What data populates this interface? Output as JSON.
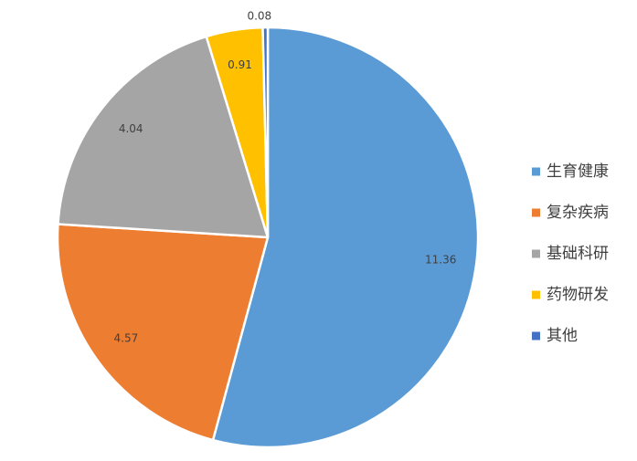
{
  "chart_data": {
    "type": "pie",
    "title": "",
    "legend_position": "right",
    "start_angle_deg": 0,
    "direction": "clockwise",
    "slices": [
      {
        "label": "生育健康",
        "value": 11.36,
        "color": "#5B9BD5"
      },
      {
        "label": "复杂疾病",
        "value": 4.57,
        "color": "#ED7D31"
      },
      {
        "label": "基础科研",
        "value": 4.04,
        "color": "#A5A5A5"
      },
      {
        "label": "药物研发",
        "value": 0.91,
        "color": "#FFC000"
      },
      {
        "label": "其他",
        "value": 0.08,
        "color": "#4472C4"
      }
    ]
  }
}
